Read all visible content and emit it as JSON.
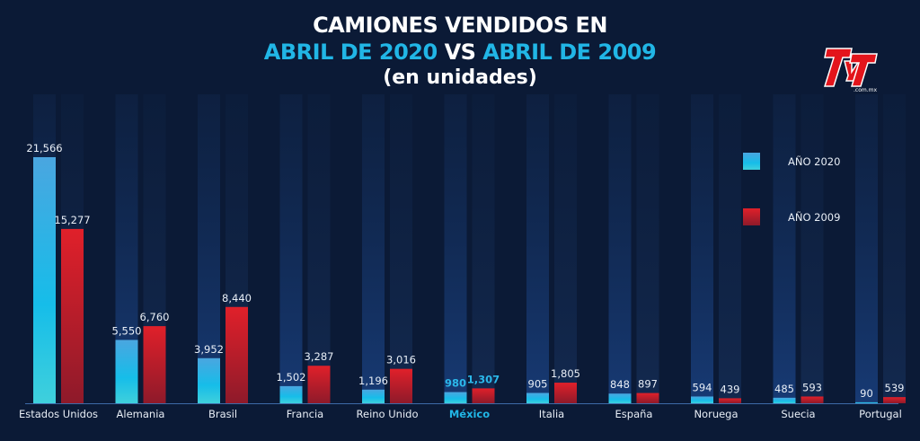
{
  "chart_data": {
    "type": "bar",
    "title_line1": "CAMIONES VENDIDOS EN",
    "title_line2_a": "ABRIL DE 2020",
    "title_line2_vs": "VS",
    "title_line2_b": "ABRIL DE 2009",
    "subtitle": "(en unidades)",
    "xlabel": "",
    "ylabel": "",
    "ylim": [
      0,
      21566
    ],
    "grid": false,
    "legend_position": "right",
    "categories": [
      "Estados Unidos",
      "Alemania",
      "Brasil",
      "Francia",
      "Reino Unido",
      "México",
      "Italia",
      "España",
      "Noruega",
      "Suecia",
      "Portugal"
    ],
    "highlight_category": "México",
    "series": [
      {
        "name": "AÑO 2020",
        "color": "#2bb8ea",
        "values": [
          21566,
          5550,
          3952,
          1502,
          1196,
          980,
          905,
          848,
          594,
          485,
          90
        ],
        "labels": [
          "21,566",
          "5,550",
          "3,952",
          "1,502",
          "1,196",
          "980",
          "905",
          "848",
          "594",
          "485",
          "90"
        ]
      },
      {
        "name": "AÑO 2009",
        "color": "#d8212a",
        "values": [
          15277,
          6760,
          8440,
          3287,
          3016,
          1307,
          1805,
          897,
          439,
          593,
          539
        ],
        "labels": [
          "15,277",
          "6,760",
          "8,440",
          "3,287",
          "3,016",
          "1,307",
          "1,805",
          "897",
          "439",
          "593",
          "539"
        ]
      }
    ]
  },
  "brand": {
    "logo_text": "TyT",
    "logo_sub": ".com.mx",
    "accent": "#e3141b",
    "highlight_color": "#21b6e6"
  }
}
